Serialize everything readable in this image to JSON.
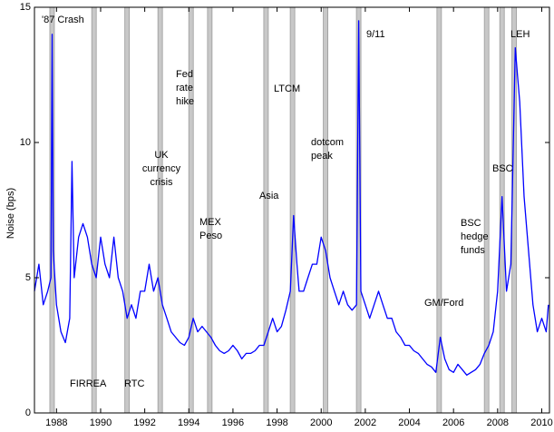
{
  "chart_data": {
    "type": "line",
    "ylabel": "Noise (bps)",
    "x": [
      1987.0,
      1987.2,
      1987.4,
      1987.6,
      1987.75,
      1987.8,
      1987.85,
      1988.0,
      1988.2,
      1988.4,
      1988.6,
      1988.7,
      1988.8,
      1989.0,
      1989.2,
      1989.4,
      1989.6,
      1989.8,
      1990.0,
      1990.2,
      1990.4,
      1990.6,
      1990.8,
      1991.0,
      1991.2,
      1991.4,
      1991.6,
      1991.8,
      1992.0,
      1992.2,
      1992.4,
      1992.6,
      1992.8,
      1993.0,
      1993.2,
      1993.4,
      1993.6,
      1993.8,
      1994.0,
      1994.2,
      1994.4,
      1994.6,
      1994.8,
      1995.0,
      1995.2,
      1995.4,
      1995.6,
      1995.8,
      1996.0,
      1996.2,
      1996.4,
      1996.6,
      1996.8,
      1997.0,
      1997.2,
      1997.4,
      1997.6,
      1997.8,
      1998.0,
      1998.2,
      1998.4,
      1998.6,
      1998.75,
      1998.9,
      1999.0,
      1999.2,
      1999.4,
      1999.6,
      1999.8,
      2000.0,
      2000.2,
      2000.4,
      2000.6,
      2000.8,
      2001.0,
      2001.2,
      2001.4,
      2001.6,
      2001.7,
      2001.8,
      2002.0,
      2002.2,
      2002.4,
      2002.6,
      2002.8,
      2003.0,
      2003.2,
      2003.4,
      2003.6,
      2003.8,
      2004.0,
      2004.2,
      2004.4,
      2004.6,
      2004.8,
      2005.0,
      2005.2,
      2005.4,
      2005.6,
      2005.8,
      2006.0,
      2006.2,
      2006.4,
      2006.6,
      2006.8,
      2007.0,
      2007.2,
      2007.4,
      2007.6,
      2007.8,
      2008.0,
      2008.2,
      2008.4,
      2008.6,
      2008.8,
      2008.9,
      2009.0,
      2009.2,
      2009.4,
      2009.6,
      2009.8,
      2010.0,
      2010.2,
      2010.3
    ],
    "series": [
      {
        "color": "#0000ff",
        "values": [
          4.5,
          5.5,
          4.0,
          4.5,
          5.0,
          14.0,
          6.0,
          4.0,
          3.0,
          2.6,
          3.5,
          9.3,
          5.0,
          6.5,
          7.0,
          6.5,
          5.5,
          5.0,
          6.5,
          5.5,
          5.0,
          6.5,
          5.0,
          4.5,
          3.5,
          4.0,
          3.5,
          4.5,
          4.5,
          5.5,
          4.5,
          5.0,
          4.0,
          3.5,
          3.0,
          2.8,
          2.6,
          2.5,
          2.8,
          3.5,
          3.0,
          3.2,
          3.0,
          2.8,
          2.5,
          2.3,
          2.2,
          2.3,
          2.5,
          2.3,
          2.0,
          2.2,
          2.2,
          2.3,
          2.5,
          2.5,
          3.0,
          3.5,
          3.0,
          3.2,
          3.8,
          4.5,
          7.3,
          5.5,
          4.5,
          4.5,
          5.0,
          5.5,
          5.5,
          6.5,
          6.0,
          5.0,
          4.5,
          4.0,
          4.5,
          4.0,
          3.8,
          4.0,
          14.5,
          4.5,
          4.0,
          3.5,
          4.0,
          4.5,
          4.0,
          3.5,
          3.5,
          3.0,
          2.8,
          2.5,
          2.5,
          2.3,
          2.2,
          2.0,
          1.8,
          1.7,
          1.5,
          2.8,
          2.0,
          1.6,
          1.5,
          1.8,
          1.6,
          1.4,
          1.5,
          1.6,
          1.8,
          2.2,
          2.5,
          3.0,
          4.5,
          8.0,
          4.5,
          5.5,
          13.5,
          12.5,
          11.5,
          8.0,
          6.0,
          4.0,
          3.0,
          3.5,
          3.0,
          4.0
        ]
      }
    ],
    "events": [
      {
        "label": [
          "'87 Crash"
        ],
        "x": 1987.8
      },
      {
        "label": [
          "FIRREA"
        ],
        "x": 1989.7
      },
      {
        "label": [
          "RTC"
        ],
        "x": 1991.2
      },
      {
        "label": [
          "UK",
          "currency",
          "crisis"
        ],
        "x": 1992.7
      },
      {
        "label": [
          "Fed",
          "rate",
          "hike"
        ],
        "x": 1994.1
      },
      {
        "label": [
          "MEX",
          "Peso"
        ],
        "x": 1994.95
      },
      {
        "label": [
          "Asia"
        ],
        "x": 1997.5
      },
      {
        "label": [
          "LTCM"
        ],
        "x": 1998.7
      },
      {
        "label": [
          "dotcom",
          "peak"
        ],
        "x": 2000.2
      },
      {
        "label": [
          "9/11"
        ],
        "x": 2001.7
      },
      {
        "label": [
          "GM/Ford"
        ],
        "x": 2005.35
      },
      {
        "label": [
          "BSC",
          "hedge",
          "funds"
        ],
        "x": 2007.5
      },
      {
        "label": [
          "BSC"
        ],
        "x": 2008.2
      },
      {
        "label": [
          "LEH"
        ],
        "x": 2008.75
      }
    ],
    "xlim": [
      1987,
      2010.35
    ],
    "ylim": [
      0,
      15
    ],
    "xticks": [
      1988,
      1990,
      1992,
      1994,
      1996,
      1998,
      2000,
      2002,
      2004,
      2006,
      2008,
      2010
    ],
    "yticks": [
      0,
      5,
      10,
      15
    ]
  }
}
